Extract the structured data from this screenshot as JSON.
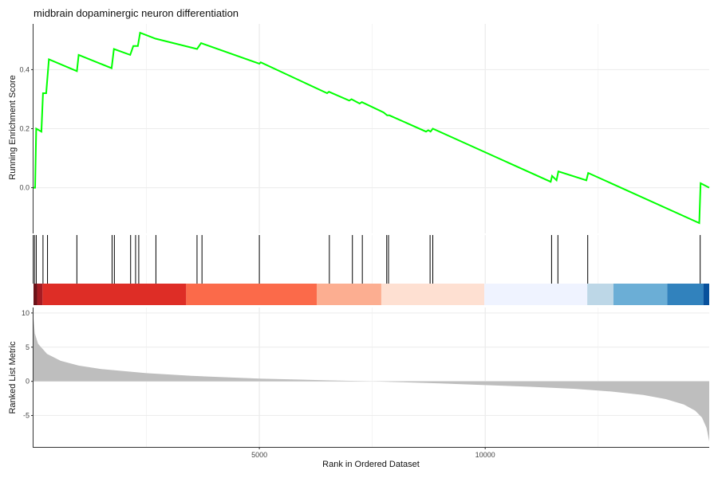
{
  "chart_data": {
    "type": "line",
    "title": "midbrain dopaminergic neuron differentiation",
    "xlabel": "Rank in Ordered Dataset",
    "xlim": [
      0,
      14960
    ],
    "x_ticks": [
      "5000",
      "10000"
    ],
    "x_tick_values": [
      5000,
      10000
    ],
    "grid": true,
    "running_es": {
      "ylabel": "Running Enrichment Score",
      "ylim": [
        -0.155,
        0.555
      ],
      "y_ticks": [
        "0.0",
        "0.2",
        "0.4"
      ],
      "y_tick_values": [
        0.0,
        0.2,
        0.4
      ],
      "line_color": "#00ff00",
      "x": [
        0,
        35,
        60,
        175,
        210,
        280,
        340,
        960,
        1000,
        1730,
        1780,
        2140,
        2210,
        2310,
        2360,
        2700,
        3620,
        3710,
        5000,
        5030,
        6500,
        6540,
        6990,
        7040,
        7220,
        7270,
        7750,
        7790,
        7830,
        7880,
        8690,
        8740,
        8790,
        8840,
        11450,
        11480,
        11580,
        11620,
        12240,
        12280,
        14740,
        14770,
        14960
      ],
      "y": [
        0.0,
        0.0,
        0.2,
        0.19,
        0.32,
        0.32,
        0.435,
        0.395,
        0.45,
        0.405,
        0.47,
        0.45,
        0.48,
        0.48,
        0.525,
        0.505,
        0.47,
        0.49,
        0.42,
        0.425,
        0.32,
        0.325,
        0.295,
        0.3,
        0.285,
        0.29,
        0.255,
        0.25,
        0.245,
        0.245,
        0.19,
        0.195,
        0.19,
        0.2,
        0.02,
        0.04,
        0.025,
        0.055,
        0.025,
        0.05,
        -0.12,
        0.015,
        0.0
      ]
    },
    "hit_positions": [
      20,
      60,
      210,
      310,
      960,
      1740,
      1790,
      2150,
      2260,
      2330,
      2710,
      3620,
      3730,
      5000,
      6550,
      7060,
      7280,
      7820,
      7860,
      8780,
      8840,
      11470,
      11610,
      12270,
      14760
    ],
    "rank_bands": [
      {
        "from": 0,
        "to": 80,
        "color": "#6b1218"
      },
      {
        "from": 80,
        "to": 200,
        "color": "#a51c23"
      },
      {
        "from": 200,
        "to": 3380,
        "color": "#de2d26"
      },
      {
        "from": 3380,
        "to": 6270,
        "color": "#fb6a4a"
      },
      {
        "from": 6270,
        "to": 7700,
        "color": "#fcae91"
      },
      {
        "from": 7700,
        "to": 9980,
        "color": "#fee0d2"
      },
      {
        "from": 9980,
        "to": 12260,
        "color": "#eff3ff"
      },
      {
        "from": 12260,
        "to": 12840,
        "color": "#bdd7e7"
      },
      {
        "from": 12840,
        "to": 14030,
        "color": "#6baed6"
      },
      {
        "from": 14030,
        "to": 14830,
        "color": "#3182bd"
      },
      {
        "from": 14830,
        "to": 14960,
        "color": "#08519c"
      }
    ],
    "ranked_metric": {
      "ylabel": "Ranked List Metric",
      "ylim": [
        -9.6,
        10.8
      ],
      "y_ticks": [
        "10",
        "5",
        "0",
        "-5"
      ],
      "y_tick_values": [
        10,
        5,
        0,
        -5
      ],
      "fill_color": "#bebebe",
      "x": [
        0,
        30,
        100,
        300,
        600,
        1000,
        1500,
        2500,
        3500,
        5000,
        6500,
        7500,
        8000,
        9000,
        10000,
        11000,
        12000,
        12800,
        13500,
        14000,
        14400,
        14650,
        14800,
        14900,
        14960
      ],
      "y": [
        9.2,
        7.0,
        5.5,
        4.0,
        3.0,
        2.3,
        1.8,
        1.2,
        0.8,
        0.4,
        0.15,
        0.0,
        -0.1,
        -0.3,
        -0.55,
        -0.8,
        -1.1,
        -1.5,
        -2.0,
        -2.6,
        -3.4,
        -4.3,
        -5.3,
        -6.8,
        -8.8
      ]
    }
  }
}
